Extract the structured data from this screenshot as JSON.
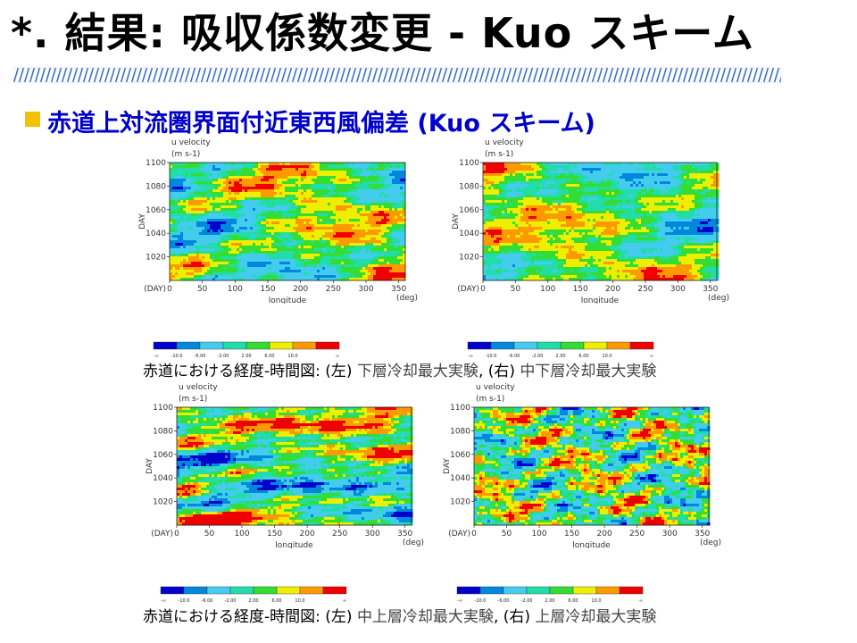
{
  "slide": {
    "title": "*. 結果: 吸収係数変更 - Kuo スキーム",
    "bullet": "赤道上対流圏界面付近東西風偏差 (Kuo スキーム)",
    "caption_top": {
      "lead": "赤道における経度-時間図: (左) ",
      "left_name": "下層冷却最大実験",
      "mid": ", (右) ",
      "right_name": "中下層冷却最大実験"
    },
    "caption_bottom": {
      "lead": "赤道における経度-時間図: (左) ",
      "left_name": "中上層冷却最大実験",
      "mid": ", (右) ",
      "right_name": "上層冷却最大実験"
    }
  },
  "plot": {
    "title": "u velocity",
    "units": "(m s-1)",
    "ylabel": "DAY",
    "xlabel": "longitude",
    "x_unit": "(deg)",
    "y_unit": "(DAY)",
    "yticks": [
      "1100",
      "1080",
      "1060",
      "1040",
      "1020"
    ],
    "xticks": [
      "0",
      "50",
      "100",
      "150",
      "200",
      "250",
      "300",
      "350"
    ]
  },
  "colorbar": {
    "colors": [
      "#0000cc",
      "#0088dd",
      "#44ccee",
      "#22ddaa",
      "#33dd33",
      "#eeee00",
      "#ff9900",
      "#ee0000"
    ],
    "labels": [
      "-∞",
      "-10.0",
      "-6.00",
      "-2.00",
      "2.00",
      "6.00",
      "10.0",
      "∞"
    ]
  },
  "chart_data": [
    {
      "type": "heatmap",
      "title": "u velocity",
      "xlabel": "longitude",
      "ylabel": "DAY",
      "xlim": [
        0,
        360
      ],
      "ylim": [
        1000,
        1100
      ],
      "experiment": "下層冷却最大実験"
    },
    {
      "type": "heatmap",
      "title": "u velocity",
      "xlabel": "longitude",
      "ylabel": "DAY",
      "xlim": [
        0,
        360
      ],
      "ylim": [
        1000,
        1100
      ],
      "experiment": "中下層冷却最大実験"
    },
    {
      "type": "heatmap",
      "title": "u velocity",
      "xlabel": "longitude",
      "ylabel": "DAY",
      "xlim": [
        0,
        360
      ],
      "ylim": [
        1000,
        1100
      ],
      "experiment": "中上層冷却最大実験"
    },
    {
      "type": "heatmap",
      "title": "u velocity",
      "xlabel": "longitude",
      "ylabel": "DAY",
      "xlim": [
        0,
        360
      ],
      "ylim": [
        1000,
        1100
      ],
      "experiment": "上層冷却最大実験"
    }
  ]
}
